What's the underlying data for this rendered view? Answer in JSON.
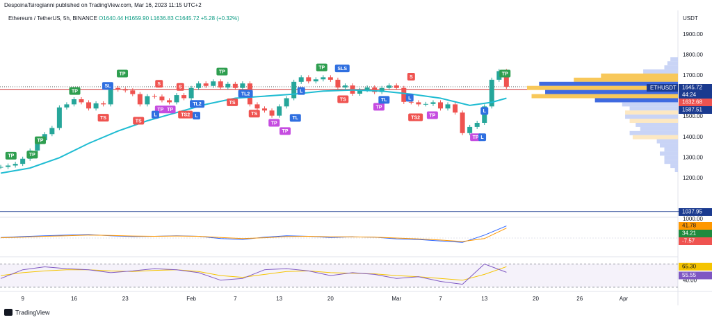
{
  "header": {
    "publisher": "DespoinaTsirogianni published on TradingView.com, Mar 16, 2023 11:15 UTC+2",
    "symbol": "Ethereum / TetherUS, 5h, BINANCE",
    "ohlc": "O1640.44 H1659.90 L1636.83 C1645.72 +5.28 (+0.32%)",
    "currency": "USDT"
  },
  "footer": {
    "brand": "TradingView"
  },
  "chart_data": [
    {
      "type": "candlestick",
      "up_color": "#26a69a",
      "down_color": "#ef5350",
      "line_color": "#c62828",
      "alert_color": "#1a3a8f",
      "xlim": [
        5.9,
        98.4
      ],
      "ylim": [
        1000,
        1940
      ],
      "xticks": [
        9,
        16,
        23,
        {
          "value": 32,
          "label": "Feb"
        },
        {
          "value": 38,
          "label": "7"
        },
        {
          "value": 44,
          "label": "13"
        },
        {
          "value": 51,
          "label": "20"
        },
        {
          "value": 60,
          "label": "Mar"
        },
        {
          "value": 66,
          "label": "7"
        },
        {
          "value": 72,
          "label": "13"
        },
        {
          "value": 79,
          "label": "20"
        },
        {
          "value": 85,
          "label": "26"
        },
        {
          "value": 91,
          "label": "Apr"
        }
      ],
      "yticks": [
        {
          "value": 1000,
          "label": "1000.00"
        },
        {
          "value": 1200,
          "label": "1200.00"
        },
        {
          "value": 1300,
          "label": "1300.00"
        },
        {
          "value": 1400,
          "label": "1400.00"
        },
        {
          "value": 1500,
          "label": "1500.00"
        },
        {
          "value": 1600,
          "label": "1600.00"
        },
        {
          "value": 1700,
          "label": "1700.00"
        },
        {
          "value": 1800,
          "label": "1800.00"
        },
        {
          "value": 1900,
          "label": "1900.00"
        }
      ],
      "series": [
        {
          "name": "ETHUSDT",
          "x": [
            6,
            7,
            8,
            9,
            10,
            11,
            12,
            13,
            14,
            15,
            16,
            17,
            18,
            19,
            20,
            21,
            22,
            23,
            24,
            25,
            26,
            27,
            28,
            29,
            30,
            31,
            32,
            33,
            34,
            35,
            36,
            37,
            38,
            39,
            40,
            41,
            42,
            43,
            44,
            45,
            46,
            47,
            48,
            49,
            50,
            51,
            52,
            53,
            54,
            55,
            56,
            57,
            58,
            59,
            60,
            61,
            62,
            63,
            64,
            65,
            66,
            67,
            68,
            69,
            70,
            71,
            72,
            73,
            74,
            75
          ],
          "values": [
            1255,
            1262,
            1270,
            1295,
            1335,
            1385,
            1415,
            1445,
            1545,
            1560,
            1585,
            1570,
            1540,
            1565,
            1560,
            1640,
            1632,
            1628,
            1610,
            1560,
            1600,
            1598,
            1580,
            1570,
            1605,
            1590,
            1640,
            1662,
            1650,
            1672,
            1642,
            1660,
            1640,
            1662,
            1560,
            1540,
            1530,
            1505,
            1550,
            1590,
            1670,
            1692,
            1672,
            1682,
            1692,
            1680,
            1642,
            1652,
            1612,
            1630,
            1642,
            1620,
            1640,
            1652,
            1640,
            1572,
            1570,
            1560,
            1562,
            1570,
            1540,
            1560,
            1520,
            1420,
            1450,
            1470,
            1550,
            1680,
            1722,
            1646
          ]
        },
        {
          "color": "#1fbcd2",
          "x": [
            6,
            10,
            14,
            18,
            22,
            26,
            30,
            34,
            38,
            42,
            46,
            50,
            54,
            58,
            62,
            66,
            70,
            73,
            75
          ],
          "values": [
            1225,
            1250,
            1300,
            1370,
            1430,
            1480,
            1520,
            1560,
            1590,
            1600,
            1610,
            1625,
            1630,
            1625,
            1610,
            1590,
            1555,
            1570,
            1590
          ]
        }
      ],
      "last_price": 1645.72,
      "countdown": "44:24",
      "price_labels": [
        1632.68,
        1587.51
      ],
      "alert_level": 1037.95,
      "annotations": [
        {
          "text": "TP",
          "x": 7.4,
          "y": 1310,
          "color": "#2e9e4f"
        },
        {
          "text": "TP",
          "x": 10.3,
          "y": 1315,
          "color": "#2e9e4f"
        },
        {
          "text": "TP",
          "x": 11.4,
          "y": 1385,
          "color": "#2e9e4f"
        },
        {
          "text": "TP",
          "x": 16.1,
          "y": 1625,
          "color": "#2e9e4f"
        },
        {
          "text": "TP",
          "x": 22.6,
          "y": 1710,
          "color": "#2e9e4f"
        },
        {
          "text": "SL",
          "x": 20.6,
          "y": 1650,
          "color": "#2f6fe0"
        },
        {
          "text": "S",
          "x": 27.6,
          "y": 1660,
          "color": "#ef5350"
        },
        {
          "text": "S",
          "x": 30.5,
          "y": 1645,
          "color": "#ef5350"
        },
        {
          "text": "TP",
          "x": 36.2,
          "y": 1720,
          "color": "#2e9e4f"
        },
        {
          "text": "TP",
          "x": 49.8,
          "y": 1740,
          "color": "#2e9e4f"
        },
        {
          "text": "SLS",
          "x": 52.6,
          "y": 1735,
          "color": "#2f6fe0"
        },
        {
          "text": "S",
          "x": 62,
          "y": 1695,
          "color": "#ef5350"
        },
        {
          "text": "TP",
          "x": 74.8,
          "y": 1710,
          "color": "#2e9e4f"
        },
        {
          "text": "TS",
          "x": 20,
          "y": 1495,
          "color": "#ef5350"
        },
        {
          "text": "TS",
          "x": 24.8,
          "y": 1480,
          "color": "#ef5350"
        },
        {
          "text": "TS",
          "x": 37.6,
          "y": 1570,
          "color": "#ef5350"
        },
        {
          "text": "TS",
          "x": 40.6,
          "y": 1515,
          "color": "#ef5350"
        },
        {
          "text": "TS",
          "x": 52.7,
          "y": 1585,
          "color": "#ef5350"
        },
        {
          "text": "TS2",
          "x": 31.2,
          "y": 1510,
          "color": "#ef5350"
        },
        {
          "text": "TS2",
          "x": 62.6,
          "y": 1497,
          "color": "#ef5350"
        },
        {
          "text": "TP",
          "x": 27.8,
          "y": 1535,
          "color": "#c54ce0"
        },
        {
          "text": "TP",
          "x": 29.1,
          "y": 1535,
          "color": "#c54ce0"
        },
        {
          "text": "TP",
          "x": 43.3,
          "y": 1470,
          "color": "#c54ce0"
        },
        {
          "text": "TP",
          "x": 44.8,
          "y": 1430,
          "color": "#c54ce0"
        },
        {
          "text": "TP",
          "x": 57.6,
          "y": 1548,
          "color": "#c54ce0"
        },
        {
          "text": "TP",
          "x": 64.9,
          "y": 1507,
          "color": "#c54ce0"
        },
        {
          "text": "TP",
          "x": 70.8,
          "y": 1400,
          "color": "#c54ce0"
        },
        {
          "text": "L",
          "x": 27.1,
          "y": 1510,
          "color": "#2f6fe0"
        },
        {
          "text": "L",
          "x": 32.7,
          "y": 1505,
          "color": "#2f6fe0"
        },
        {
          "text": "TL2",
          "x": 32.8,
          "y": 1562,
          "color": "#2f6fe0"
        },
        {
          "text": "TL2",
          "x": 39.4,
          "y": 1612,
          "color": "#2f6fe0"
        },
        {
          "text": "TL",
          "x": 46.2,
          "y": 1494,
          "color": "#2f6fe0"
        },
        {
          "text": "TL",
          "x": 58.3,
          "y": 1582,
          "color": "#2f6fe0"
        },
        {
          "text": "L",
          "x": 47,
          "y": 1625,
          "color": "#2f6fe0"
        },
        {
          "text": "L",
          "x": 61.8,
          "y": 1592,
          "color": "#2f6fe0"
        },
        {
          "text": "L",
          "x": 72,
          "y": 1528,
          "color": "#2f6fe0"
        },
        {
          "text": "L",
          "x": 71.7,
          "y": 1400,
          "color": "#2f6fe0"
        }
      ]
    },
    {
      "type": "bar",
      "orientation": "horizontal",
      "xlim": [
        0,
        100
      ],
      "categories": [
        1780,
        1760,
        1740,
        1720,
        1700,
        1680,
        1660,
        1640,
        1620,
        1600,
        1580,
        1560,
        1540,
        1520,
        1500,
        1480,
        1460,
        1440,
        1420,
        1400,
        1380,
        1360,
        1340,
        1320,
        1300,
        1280,
        1260,
        1240
      ],
      "values": [
        5,
        7,
        9,
        23,
        51,
        69,
        92,
        100,
        88,
        97,
        55,
        37,
        32,
        35,
        35,
        32,
        28,
        25,
        32,
        30,
        14,
        12,
        9,
        12,
        9,
        9,
        5,
        2
      ],
      "colors": [
        "#c9d4f6",
        "#c9d4f6",
        "#c9d4f6",
        "#c9d4f6",
        "#f8c85a",
        "#f8c85a",
        "#3f6ae0",
        "#f8c85a",
        "#3f6ae0",
        "#f8c85a",
        "#3f6ae0",
        "#c9d4f6",
        "#c9d4f6",
        "#fde8c2",
        "#c9d4f6",
        "#fde8c2",
        "#c9d4f6",
        "#c9d4f6",
        "#c9d4f6",
        "#fde8c2",
        "#c9d4f6",
        "#c9d4f6",
        "#c9d4f6",
        "#c9d4f6",
        "#c9d4f6",
        "#c9d4f6",
        "#c9d4f6",
        "#c9d4f6"
      ]
    },
    {
      "type": "line",
      "ylim": [
        -60,
        60
      ],
      "series": [
        {
          "color": "#2962ff",
          "x": [
            6,
            9,
            12,
            15,
            18,
            21,
            24,
            27,
            30,
            33,
            36,
            39,
            42,
            45,
            48,
            51,
            54,
            57,
            60,
            63,
            66,
            69,
            72,
            75
          ],
          "values": [
            2,
            5,
            8,
            10,
            12,
            8,
            5,
            6,
            8,
            6,
            -2,
            -5,
            3,
            8,
            6,
            2,
            4,
            3,
            -3,
            -5,
            -10,
            -15,
            10,
            41.78
          ]
        },
        {
          "color": "#ff9800",
          "x": [
            6,
            9,
            12,
            15,
            18,
            21,
            24,
            27,
            30,
            33,
            36,
            39,
            42,
            45,
            48,
            51,
            54,
            57,
            60,
            63,
            66,
            69,
            72,
            75
          ],
          "values": [
            1,
            3,
            6,
            8,
            10,
            9,
            7,
            6,
            7,
            6,
            2,
            -2,
            1,
            5,
            6,
            4,
            4,
            3,
            0,
            -3,
            -7,
            -12,
            -2,
            34.21
          ]
        }
      ],
      "histogram_last": -7.57,
      "label_colors": [
        "#ff9800",
        "#1e8a3e",
        "#ef5350"
      ]
    },
    {
      "type": "line",
      "ylim": [
        25,
        80
      ],
      "bands": [
        70,
        30
      ],
      "yticks": [
        {
          "value": 40,
          "label": "40.00"
        }
      ],
      "series": [
        {
          "color": "#7e57c2",
          "x": [
            6,
            9,
            12,
            15,
            18,
            21,
            24,
            27,
            30,
            33,
            36,
            39,
            42,
            45,
            48,
            51,
            54,
            57,
            60,
            63,
            66,
            69,
            72,
            75
          ],
          "values": [
            45,
            60,
            65,
            62,
            60,
            55,
            58,
            62,
            60,
            55,
            42,
            45,
            60,
            62,
            58,
            50,
            55,
            52,
            45,
            48,
            40,
            35,
            70,
            55.55
          ]
        },
        {
          "color": "#f5c400",
          "x": [
            6,
            9,
            12,
            15,
            18,
            21,
            24,
            27,
            30,
            33,
            36,
            39,
            42,
            45,
            48,
            51,
            54,
            57,
            60,
            63,
            66,
            69,
            72,
            75
          ],
          "values": [
            50,
            55,
            58,
            60,
            60,
            58,
            57,
            59,
            60,
            57,
            50,
            47,
            52,
            57,
            58,
            55,
            54,
            53,
            50,
            48,
            45,
            42,
            52,
            65.3
          ]
        }
      ],
      "last_labels": [
        {
          "value": 65.3,
          "label": "65.30"
        },
        {
          "value": 55.55,
          "label": "55.55"
        }
      ]
    }
  ]
}
